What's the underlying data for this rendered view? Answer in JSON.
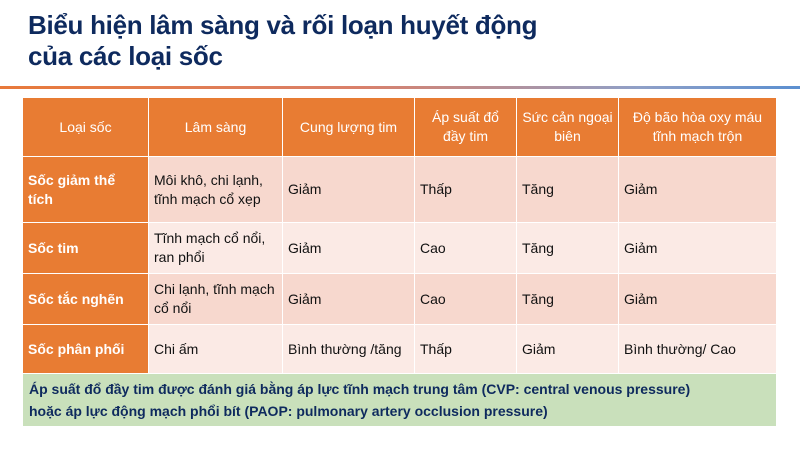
{
  "title": {
    "line1": "Biểu hiện lâm sàng và rối loạn huyết động",
    "line2": "của các loại sốc"
  },
  "table": {
    "headers": [
      "Loại sốc",
      "Lâm sàng",
      "Cung lượng tim",
      "Áp suất đổ đầy tim",
      "Sức cản ngoại biên",
      "Độ bão hòa oxy máu tĩnh mạch trộn"
    ],
    "rows": [
      [
        "Sốc giảm thể tích",
        "Môi khô, chi lạnh, tĩnh mạch cổ xẹp",
        "Giảm",
        "Thấp",
        "Tăng",
        "Giảm"
      ],
      [
        "Sốc tim",
        "Tĩnh mạch cổ nổi, ran phổi",
        "Giảm",
        "Cao",
        "Tăng",
        "Giảm"
      ],
      [
        "Sốc tắc nghẽn",
        "Chi lạnh, tĩnh mạch cổ nổi",
        "Giảm",
        "Cao",
        "Tăng",
        "Giảm"
      ],
      [
        "Sốc phân phối",
        "Chi ấm",
        "Bình thường /tăng",
        "Thấp",
        "Giảm",
        "Bình thường/ Cao"
      ]
    ],
    "note_line1": "Áp suất đổ đầy tim được đánh giá bằng áp lực tĩnh mạch trung tâm (CVP: central venous pressure)",
    "note_line2": "hoặc áp lực động mạch phổi bít (PAOP: pulmonary artery occlusion pressure)"
  },
  "colors": {
    "header": "#e87c33",
    "row_odd": "#f7d8ce",
    "row_even": "#fbeae5",
    "note": "#c9e0bb",
    "title": "#0e2a5e"
  }
}
